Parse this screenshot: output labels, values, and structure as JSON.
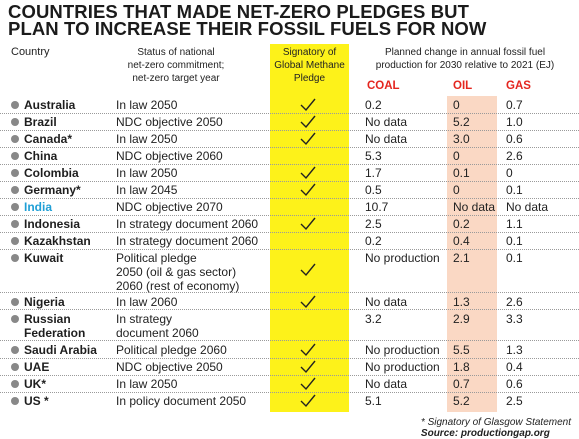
{
  "title": {
    "line1": "COUNTRIES THAT MADE NET-ZERO PLEDGES BUT",
    "line2": "PLAN TO INCREASE THEIR FOSSIL FUELS FOR NOW"
  },
  "headers": {
    "country": "Country",
    "status": [
      "Status of national",
      "net-zero commitment;",
      "net-zero target year"
    ],
    "methane": [
      "Signatory of",
      "Global Methane",
      "Pledge"
    ],
    "planned": [
      "Planned change in annual fossil fuel",
      "production for 2030 relative to 2021 (EJ)"
    ],
    "coal": "COAL",
    "oil": "OIL",
    "gas": "GAS"
  },
  "colors": {
    "methane_highlight": "#fdf21a",
    "oil_highlight": "#fad8c4",
    "subheader_red": "#e4261f",
    "india_blue": "#1f9fd6"
  },
  "rows": [
    {
      "country": "Australia",
      "status": [
        "In law 2050"
      ],
      "methane": true,
      "coal": "0.2",
      "oil": "0",
      "gas": "0.7"
    },
    {
      "country": "Brazil",
      "status": [
        "NDC objective 2050"
      ],
      "methane": true,
      "coal": "No data",
      "oil": "5.2",
      "gas": "1.0"
    },
    {
      "country": "Canada*",
      "status": [
        "In law 2050"
      ],
      "methane": true,
      "coal": "No data",
      "oil": "3.0",
      "gas": "0.6"
    },
    {
      "country": "China",
      "status": [
        "NDC objective 2060"
      ],
      "methane": false,
      "coal": "5.3",
      "oil": "0",
      "gas": "2.6"
    },
    {
      "country": "Colombia",
      "status": [
        "In law 2050"
      ],
      "methane": true,
      "coal": "1.7",
      "oil": "0.1",
      "gas": "0"
    },
    {
      "country": "Germany*",
      "status": [
        "In law 2045"
      ],
      "methane": true,
      "coal": "0.5",
      "oil": "0",
      "gas": "0.1"
    },
    {
      "country": "India",
      "status": [
        "NDC objective 2070"
      ],
      "methane": false,
      "coal": "10.7",
      "oil": "No data",
      "gas": "No data"
    },
    {
      "country": "Indonesia",
      "status": [
        "In strategy document 2060"
      ],
      "methane": true,
      "coal": "2.5",
      "oil": "0.2",
      "gas": "1.1"
    },
    {
      "country": "Kazakhstan",
      "status": [
        "In strategy document 2060"
      ],
      "methane": false,
      "coal": "0.2",
      "oil": "0.4",
      "gas": "0.1"
    },
    {
      "country": "Kuwait",
      "status": [
        "Political pledge",
        "2050 (oil & gas sector)",
        "2060 (rest of economy)"
      ],
      "methane": true,
      "coal": "No production",
      "oil": "2.1",
      "gas": "0.1"
    },
    {
      "country": "Nigeria",
      "status": [
        "In law 2060"
      ],
      "methane": true,
      "coal": "No data",
      "oil": "1.3",
      "gas": "2.6"
    },
    {
      "country": "Russian|Federation",
      "status": [
        "In strategy",
        "document 2060"
      ],
      "methane": false,
      "coal": "3.2",
      "oil": "2.9",
      "gas": "3.3"
    },
    {
      "country": "Saudi Arabia",
      "status": [
        "Political pledge 2060"
      ],
      "methane": true,
      "coal": "No production",
      "oil": "5.5",
      "gas": "1.3"
    },
    {
      "country": "UAE",
      "status": [
        "NDC objective 2050"
      ],
      "methane": true,
      "coal": "No production",
      "oil": "1.8",
      "gas": "0.4"
    },
    {
      "country": "UK*",
      "status": [
        "In law 2050"
      ],
      "methane": true,
      "coal": "No data",
      "oil": "0.7",
      "gas": "0.6"
    },
    {
      "country": "US *",
      "status": [
        "In policy document 2050"
      ],
      "methane": true,
      "coal": "5.1",
      "oil": "5.2",
      "gas": "2.5"
    }
  ],
  "footer": {
    "note": "* Signatory of Glasgow Statement | ",
    "source": "Source: productiongap.org"
  }
}
